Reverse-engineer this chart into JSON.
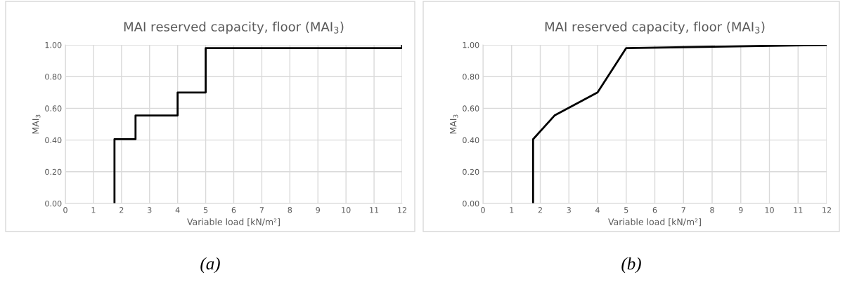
{
  "chart_data": [
    {
      "type": "step",
      "title": "MAI reserved capacity, floor (MAI$_{3}$)",
      "xlabel": "Variable load [kN/m²]",
      "ylabel": "MAI$_{3}$",
      "annotations": [
        "(a)"
      ],
      "series": [
        {
          "color": "#000000",
          "x": [
            1.75,
            1.75,
            2.5,
            4,
            5,
            12
          ],
          "values": [
            0,
            0.405,
            0.555,
            0.7,
            0.98,
            1.0
          ]
        }
      ],
      "xlim": [
        0,
        12
      ],
      "xticks": [
        0,
        1,
        2,
        3,
        4,
        5,
        6,
        7,
        8,
        9,
        10,
        11,
        12
      ],
      "ylim": [
        0,
        1
      ],
      "yticks": [
        {
          "value": 0,
          "label": "0.00"
        },
        {
          "value": 0.2,
          "label": "0.20"
        },
        {
          "value": 0.4,
          "label": "0.40"
        },
        {
          "value": 0.6,
          "label": "0.60"
        },
        {
          "value": 0.8,
          "label": "0.80"
        },
        {
          "value": 1,
          "label": "1.00"
        }
      ],
      "grid": true,
      "legend": false
    },
    {
      "type": "line",
      "title": "MAI reserved capacity, floor (MAI$_{3}$)",
      "xlabel": "Variable load [kN/m²]",
      "ylabel": "MAI$_{3}$",
      "annotations": [
        "(b)"
      ],
      "series": [
        {
          "color": "#000000",
          "x": [
            1.75,
            1.75,
            2.5,
            4,
            5,
            12
          ],
          "values": [
            0,
            0.405,
            0.555,
            0.7,
            0.98,
            1.0
          ]
        }
      ],
      "xlim": [
        0,
        12
      ],
      "xticks": [
        0,
        1,
        2,
        3,
        4,
        5,
        6,
        7,
        8,
        9,
        10,
        11,
        12
      ],
      "ylim": [
        0,
        1
      ],
      "yticks": [
        {
          "value": 0,
          "label": "0.00"
        },
        {
          "value": 0.2,
          "label": "0.20"
        },
        {
          "value": 0.4,
          "label": "0.40"
        },
        {
          "value": 0.6,
          "label": "0.60"
        },
        {
          "value": 0.8,
          "label": "0.80"
        },
        {
          "value": 1,
          "label": "1.00"
        }
      ],
      "grid": true,
      "legend": false
    }
  ]
}
